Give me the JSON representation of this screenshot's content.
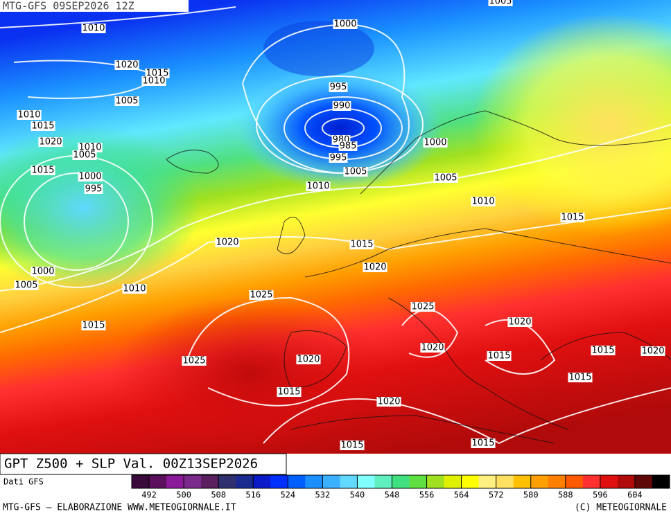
{
  "header": {
    "run": "MTG-GFS 09SEP2026 12Z"
  },
  "map_title": "GPT Z500 + SLP Val. 00Z13SEP2026",
  "source": "Dati GFS",
  "footer": {
    "left": "MTG-GFS – ELABORAZIONE WWW.METEOGIORNALE.IT",
    "right": "(C) METEOGIORNALE"
  },
  "colorbar": {
    "range": [
      488,
      612
    ],
    "ticks": [
      492,
      500,
      508,
      516,
      524,
      532,
      540,
      548,
      556,
      564,
      572,
      580,
      588,
      596,
      604
    ],
    "colors": [
      "#3a0a3a",
      "#5c0f5c",
      "#8b1a9b",
      "#7b2b8b",
      "#5a2060",
      "#303070",
      "#1a2a90",
      "#0a1ac8",
      "#0030ff",
      "#0060ff",
      "#1a90ff",
      "#3ab0ff",
      "#60d8ff",
      "#80ffff",
      "#60f0c0",
      "#40e080",
      "#60e040",
      "#a0e020",
      "#e0f000",
      "#ffff00",
      "#fff080",
      "#ffe060",
      "#ffc000",
      "#ffa000",
      "#ff8000",
      "#ff5a00",
      "#ff3030",
      "#e01010",
      "#b00a0a",
      "#600808",
      "#000000"
    ]
  },
  "isobar_labels": [
    "1005",
    "1010",
    "1000",
    "1020",
    "1015",
    "1010",
    "995",
    "1005",
    "990",
    "1010",
    "1015",
    "1020",
    "980",
    "985",
    "1010",
    "1005",
    "1000",
    "995",
    "1015",
    "1005",
    "1000",
    "995",
    "1005",
    "1010",
    "1010",
    "1015",
    "1020",
    "1015",
    "1020",
    "1000",
    "1005",
    "1010",
    "1025",
    "1025",
    "1015",
    "1020",
    "1020",
    "1015",
    "1020",
    "1025",
    "1020",
    "1015",
    "1015",
    "1015",
    "1020",
    "1015",
    "1015"
  ]
}
